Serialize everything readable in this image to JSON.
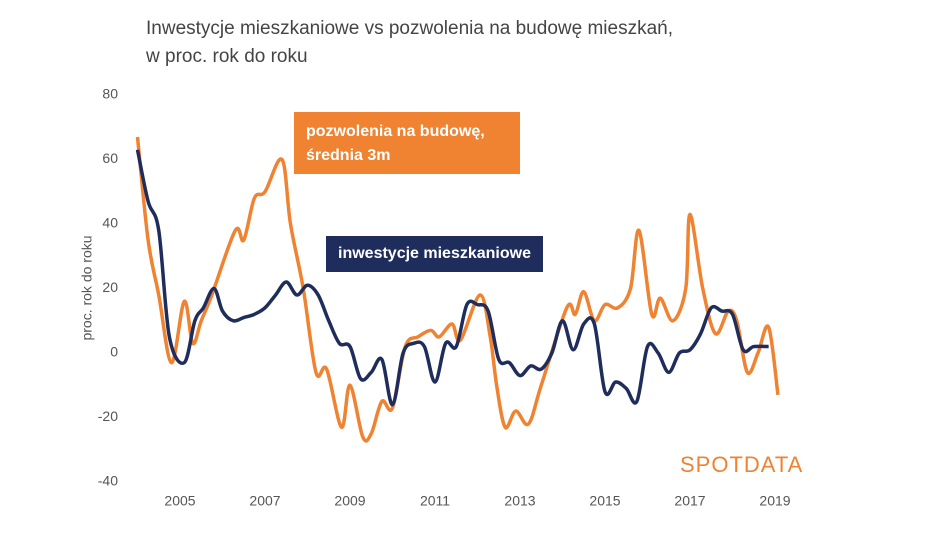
{
  "chart_data": {
    "type": "line",
    "title": "Inwestycje mieszkaniowe vs pozwolenia na budowę mieszkań,",
    "subtitle": "w proc. rok do roku",
    "y_label": "proc. rok do roku",
    "logo": "SPOTDATA",
    "xlim": [
      2004,
      2019.6
    ],
    "xticks": [
      2005,
      2007,
      2009,
      2011,
      2013,
      2015,
      2017,
      2019
    ],
    "ylim": [
      -40,
      80
    ],
    "yticks": [
      -40,
      -20,
      0,
      20,
      40,
      60,
      80
    ],
    "series": [
      {
        "name": "pozwolenia na budowę, średnia 3m",
        "color": "#ef8332",
        "x": [
          2004.0,
          2004.25,
          2004.5,
          2004.8,
          2005.1,
          2005.3,
          2005.5,
          2005.75,
          2006.3,
          2006.5,
          2006.75,
          2007.0,
          2007.4,
          2007.6,
          2007.9,
          2008.2,
          2008.45,
          2008.8,
          2009.0,
          2009.3,
          2009.5,
          2009.75,
          2010.0,
          2010.3,
          2010.6,
          2010.9,
          2011.1,
          2011.4,
          2011.6,
          2012.06,
          2012.3,
          2012.45,
          2012.65,
          2012.9,
          2013.2,
          2013.5,
          2014.1,
          2014.3,
          2014.5,
          2014.75,
          2015.0,
          2015.3,
          2015.6,
          2015.8,
          2016.1,
          2016.3,
          2016.6,
          2016.9,
          2017.0,
          2017.3,
          2017.6,
          2017.9,
          2018.1,
          2018.35,
          2018.6,
          2018.85,
          2019.07
        ],
        "values": [
          67,
          35,
          18,
          -3,
          16,
          3,
          10,
          18,
          38,
          35,
          48,
          50,
          60,
          40,
          20,
          -6,
          -5,
          -23,
          -10,
          -26,
          -25,
          -15,
          -17,
          2,
          5,
          7,
          5,
          9,
          4,
          18,
          5,
          -10,
          -23,
          -18,
          -22,
          -10,
          14,
          12,
          19,
          10,
          15,
          14,
          20,
          38,
          12,
          17,
          10,
          20,
          43,
          20,
          6,
          13,
          10,
          -6,
          0,
          8,
          -13
        ]
      },
      {
        "name": "inwestycje mieszkaniowe",
        "color": "#1f2d5c",
        "x": [
          2004.0,
          2004.25,
          2004.5,
          2004.75,
          2005.1,
          2005.35,
          2005.55,
          2005.8,
          2006.0,
          2006.25,
          2006.5,
          2006.75,
          2007.0,
          2007.25,
          2007.5,
          2007.75,
          2008.0,
          2008.25,
          2008.5,
          2008.75,
          2009.0,
          2009.25,
          2009.5,
          2009.75,
          2010.0,
          2010.25,
          2010.5,
          2010.75,
          2011.0,
          2011.25,
          2011.5,
          2011.75,
          2012.0,
          2012.25,
          2012.5,
          2012.75,
          2013.0,
          2013.25,
          2013.5,
          2013.75,
          2014.0,
          2014.25,
          2014.5,
          2014.75,
          2015.0,
          2015.25,
          2015.5,
          2015.75,
          2016.0,
          2016.25,
          2016.5,
          2016.75,
          2017.0,
          2017.25,
          2017.5,
          2017.75,
          2018.0,
          2018.25,
          2018.5,
          2018.85
        ],
        "values": [
          63,
          47,
          38,
          5,
          -3,
          10,
          14,
          20,
          13,
          10,
          11,
          12,
          14,
          18,
          22,
          18,
          21,
          18,
          10,
          3,
          2,
          -8,
          -6,
          -2,
          -16,
          0,
          3,
          2,
          -9,
          3,
          2,
          15,
          15,
          13,
          -2,
          -3,
          -7,
          -4,
          -5,
          0,
          10,
          1,
          9,
          9,
          -12,
          -9,
          -11,
          -15,
          2,
          0,
          -6,
          0,
          1,
          6,
          14,
          13,
          12,
          1,
          2,
          2
        ]
      }
    ]
  }
}
